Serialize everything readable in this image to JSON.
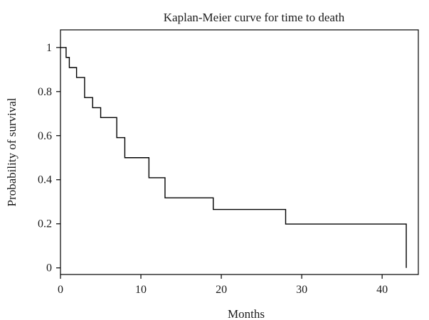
{
  "chart_data": {
    "type": "line",
    "title": "Kaplan-Meier curve for time to death",
    "xlabel": "Months",
    "ylabel": "Probability of survival",
    "xlim": [
      0,
      44.5
    ],
    "ylim": [
      -0.03,
      1.08
    ],
    "x_ticks": [
      0,
      10,
      20,
      30,
      40
    ],
    "y_ticks": [
      0,
      0.2,
      0.4,
      0.6,
      0.8,
      1
    ],
    "x_tick_labels": [
      "0",
      "10",
      "20",
      "30",
      "40"
    ],
    "y_tick_labels": [
      "0",
      "0.2",
      "0.4",
      "0.6",
      "0.8",
      "1"
    ],
    "grid": false,
    "step_curve": {
      "x": [
        0,
        0.7,
        1.1,
        2,
        3,
        4,
        5,
        7,
        8,
        11,
        13,
        19,
        28,
        43,
        43
      ],
      "y": [
        1,
        0.955,
        0.909,
        0.864,
        0.773,
        0.727,
        0.682,
        0.591,
        0.5,
        0.409,
        0.318,
        0.265,
        0.199,
        0.199,
        0
      ]
    }
  }
}
